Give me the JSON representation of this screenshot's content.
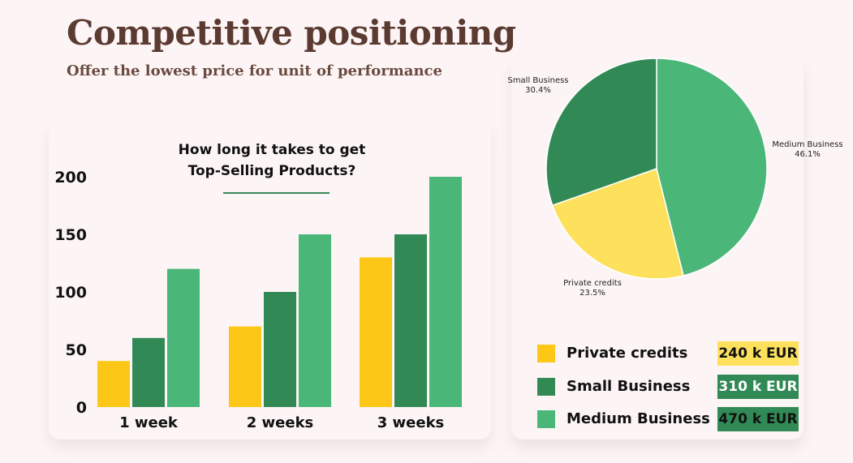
{
  "header": {
    "title": "Competitive positioning",
    "subtitle": "Offer the lowest price for unit of performance"
  },
  "colors": {
    "private": "#fcc716",
    "small": "#318a55",
    "medium": "#4ab677",
    "pie_private": "#fde05c"
  },
  "chart_data": [
    {
      "type": "bar",
      "title_line1": "How long it takes to get",
      "title_line2": "Top-Selling Products?",
      "categories": [
        "1 week",
        "2 weeks",
        "3 weeks"
      ],
      "series": [
        {
          "color": "#fcc716",
          "values": [
            40,
            70,
            130
          ]
        },
        {
          "color": "#318a55",
          "values": [
            60,
            100,
            150
          ]
        },
        {
          "color": "#4ab677",
          "values": [
            120,
            150,
            200
          ]
        }
      ],
      "yticks": [
        0,
        50,
        100,
        150,
        200
      ],
      "ylim": [
        0,
        200
      ],
      "grid": false
    },
    {
      "type": "pie",
      "slices": [
        {
          "label": "Medium Business",
          "value": 46.1,
          "pct": "46.1%",
          "color": "#4ab677"
        },
        {
          "label": "Private credits",
          "value": 23.5,
          "pct": "23.5%",
          "color": "#fde05c"
        },
        {
          "label": "Small Business",
          "value": 30.4,
          "pct": "30.4%",
          "color": "#318a55"
        }
      ]
    }
  ],
  "legend": [
    {
      "label": "Private credits",
      "amount": "240 k EUR",
      "color": "#fcc716",
      "badge_bg": "#fde05c",
      "badge_fg": "#111111"
    },
    {
      "label": "Small Business",
      "amount": "310 k EUR",
      "color": "#318a55",
      "badge_bg": "#318a55",
      "badge_fg": "#ffffff"
    },
    {
      "label": "Medium Business",
      "amount": "470 k EUR",
      "color": "#4ab677",
      "badge_bg": "#318a55",
      "badge_fg": "#111111"
    }
  ]
}
